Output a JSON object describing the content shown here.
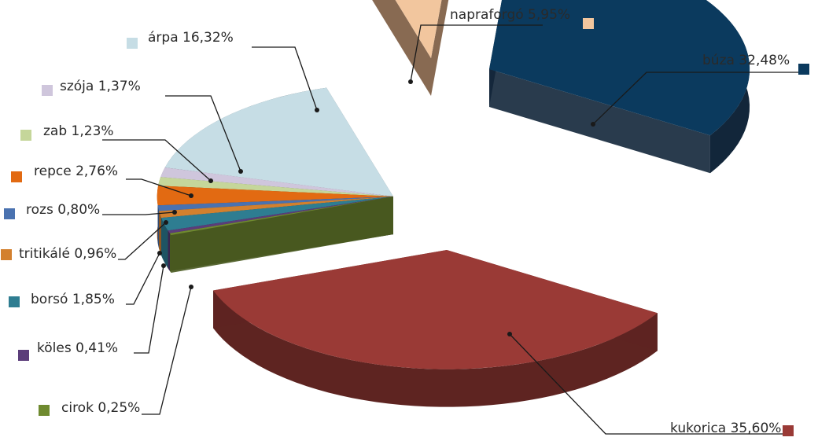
{
  "chart_data": {
    "type": "pie",
    "title": "",
    "legend_position": "labels",
    "slices": [
      {
        "name": "búza",
        "label": "búza 32,48%",
        "value": 32.48,
        "color": "#0b3a5e",
        "side": "#12263a"
      },
      {
        "name": "kukorica",
        "label": "kukorica 35,60%",
        "value": 35.6,
        "color": "#9a3a36",
        "side": "#5e2421"
      },
      {
        "name": "cirok",
        "label": "cirok 0,25%",
        "value": 0.25,
        "color": "#6f8a2f",
        "side": "#48591f"
      },
      {
        "name": "köles",
        "label": "köles 0,41%",
        "value": 0.41,
        "color": "#5b3d7a",
        "side": "#3a2750"
      },
      {
        "name": "borsó",
        "label": "borsó 1,85%",
        "value": 1.85,
        "color": "#2e7d91",
        "side": "#1e5463"
      },
      {
        "name": "tritikálé",
        "label": "tritikálé 0,96%",
        "value": 0.96,
        "color": "#d3802e",
        "side": "#8f561f"
      },
      {
        "name": "rozs",
        "label": "rozs 0,80%",
        "value": 0.8,
        "color": "#4a72b0",
        "side": "#304b74"
      },
      {
        "name": "repce",
        "label": "repce 2,76%",
        "value": 2.76,
        "color": "#e26a12",
        "side": "#98470c"
      },
      {
        "name": "zab",
        "label": "zab 1,23%",
        "value": 1.23,
        "color": "#c5d69a",
        "side": "#85905f"
      },
      {
        "name": "szója",
        "label": "szója 1,37%",
        "value": 1.37,
        "color": "#cfc6dc",
        "side": "#8c8596"
      },
      {
        "name": "árpa",
        "label": "árpa 16,32%",
        "value": 16.32,
        "color": "#c6dde5",
        "side": "#4d5d63"
      },
      {
        "name": "napraforgó",
        "label": "napraforgó 5,95%",
        "value": 5.95,
        "color": "#f2c69e",
        "side": "#7b5a3f"
      }
    ]
  }
}
